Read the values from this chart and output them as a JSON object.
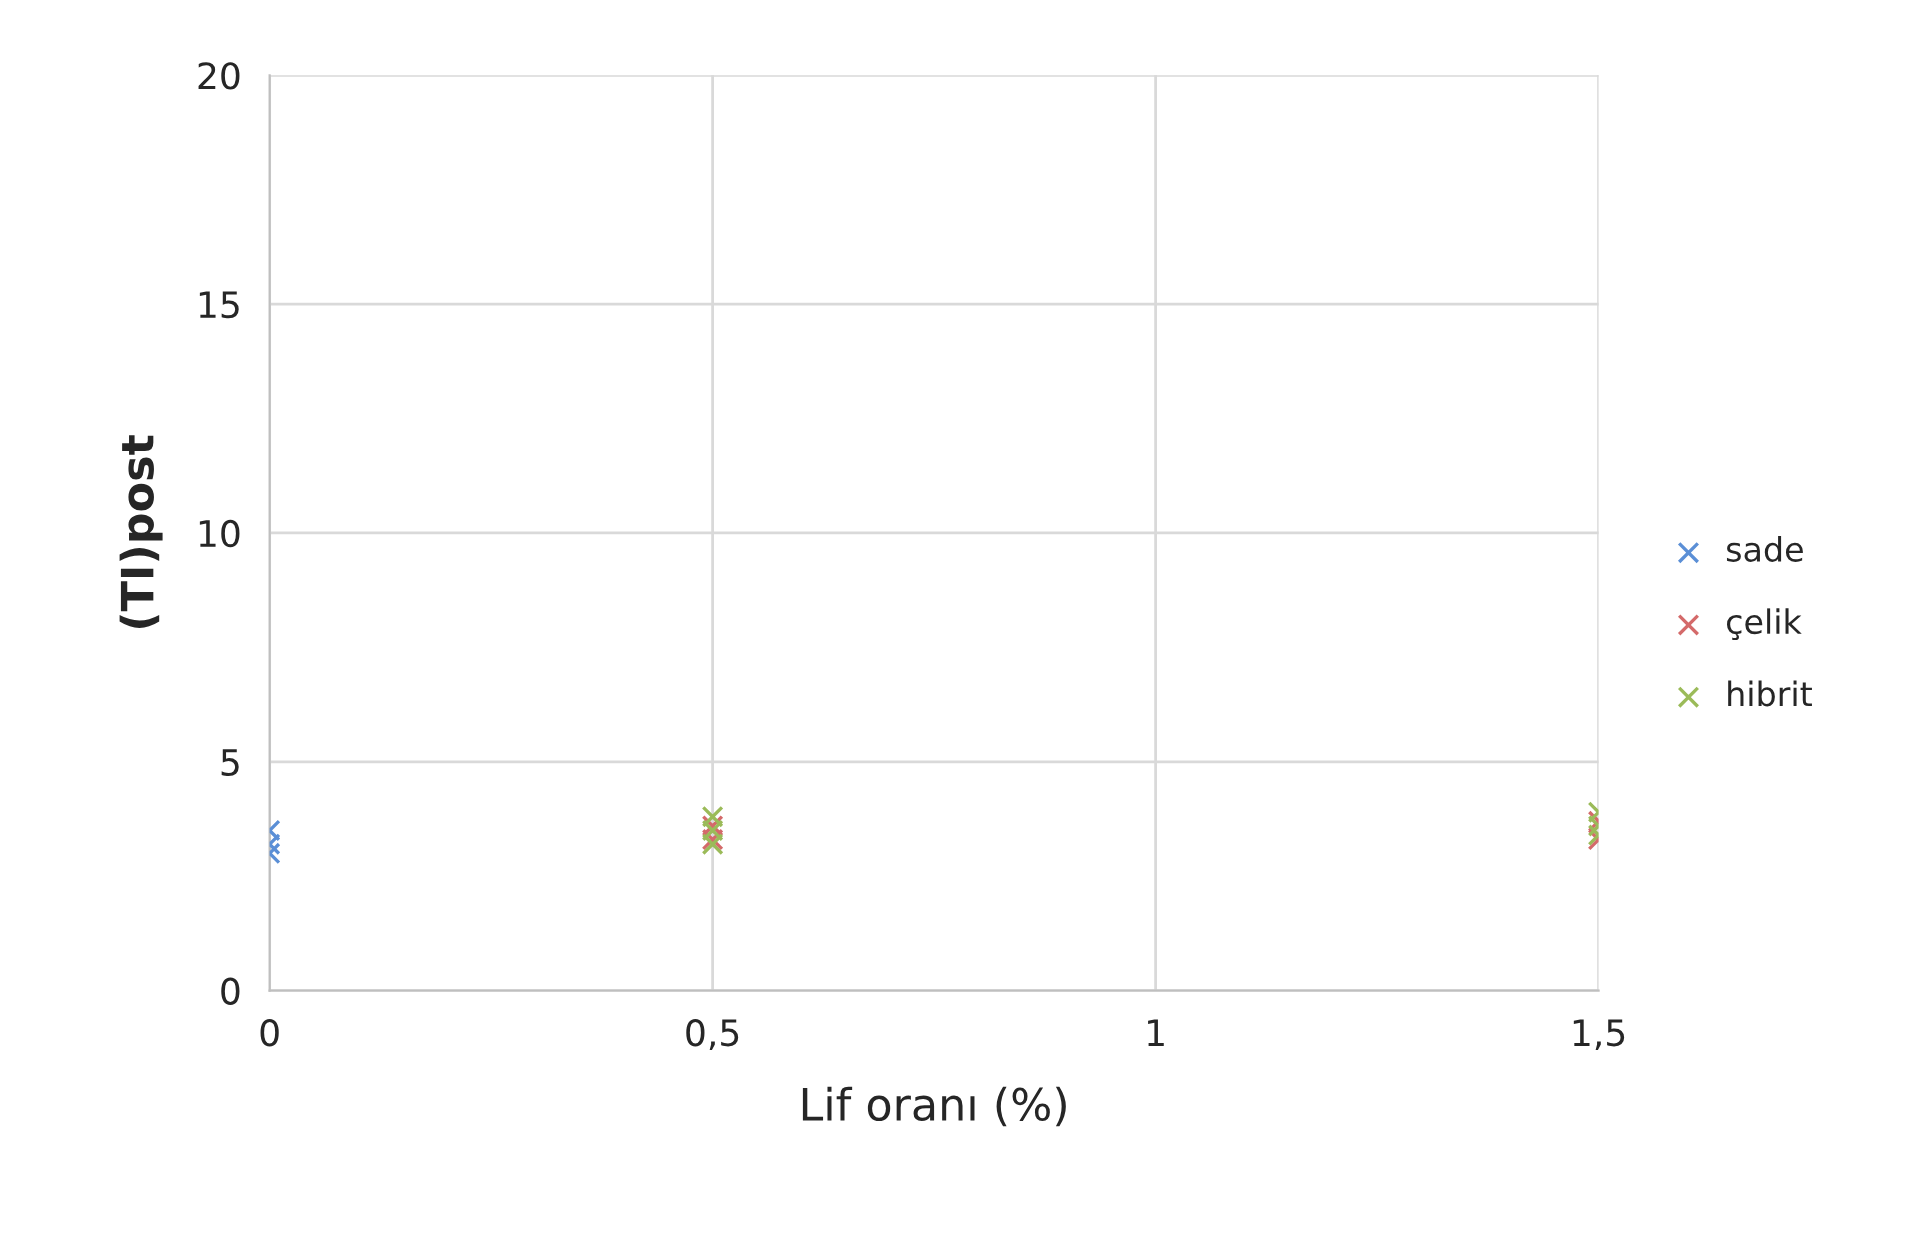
{
  "chart_data": {
    "type": "scatter",
    "xlabel": "Lif oranı (%)",
    "ylabel": "(TI)post",
    "xlim": [
      0,
      1.5
    ],
    "xticks": [
      0,
      {
        "value": 0.5,
        "label": "0,5"
      },
      1,
      {
        "value": 1.5,
        "label": "1,5"
      }
    ],
    "ylim": [
      0,
      20
    ],
    "yticks": [
      0,
      5,
      10,
      15,
      20
    ],
    "grid": true,
    "legend": "right",
    "marker": "cross",
    "series": [
      {
        "name": "sade",
        "color": "#5b8fd6",
        "x": [
          0,
          0,
          0
        ],
        "values": [
          3.0,
          3.2,
          3.5
        ]
      },
      {
        "name": "çelik",
        "color": "#d46a6a",
        "x": [
          0.5,
          0.5,
          1.5,
          1.5
        ],
        "values": [
          3.3,
          3.6,
          3.3,
          3.7
        ]
      },
      {
        "name": "hibrit",
        "color": "#9bbb59",
        "x": [
          0.5,
          0.5,
          0.5,
          1.5,
          1.5,
          1.5
        ],
        "values": [
          3.2,
          3.5,
          3.8,
          3.4,
          3.6,
          3.9
        ]
      }
    ]
  }
}
